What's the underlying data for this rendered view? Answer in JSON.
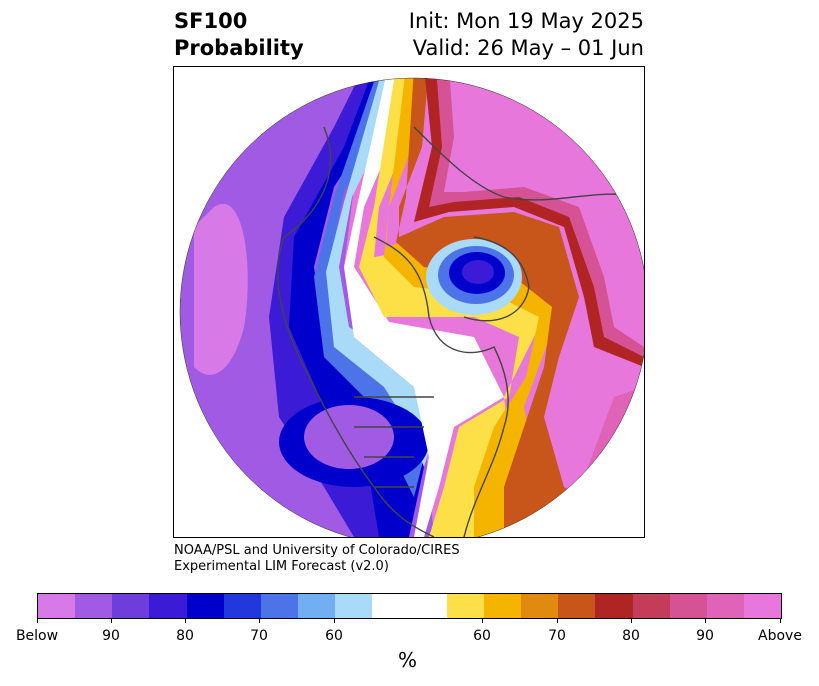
{
  "title": {
    "left_line1": "SF100",
    "left_line2": "Probability",
    "right_line1": "Init: Mon 19 May 2025",
    "right_line2": "Valid: 26 May – 01 Jun"
  },
  "credit": {
    "line1": "NOAA/PSL and University of Colorado/CIRES",
    "line2": "Experimental LIM Forecast (v2.0)"
  },
  "colorbar": {
    "colors": [
      "#d77ae8",
      "#a15ae4",
      "#6e3ddc",
      "#3b1bd6",
      "#0000cd",
      "#2238dc",
      "#4c74e8",
      "#72aef2",
      "#a9daf8",
      "#ffffff",
      "#ffffff",
      "#fde047",
      "#f5b400",
      "#e08a10",
      "#c8561a",
      "#b02424",
      "#c43c58",
      "#d55294",
      "#df64b8",
      "#e877dc"
    ],
    "tick_labels": [
      "Below",
      "90",
      "80",
      "70",
      "60",
      "60",
      "70",
      "80",
      "90",
      "Above"
    ],
    "unit": "%"
  }
}
